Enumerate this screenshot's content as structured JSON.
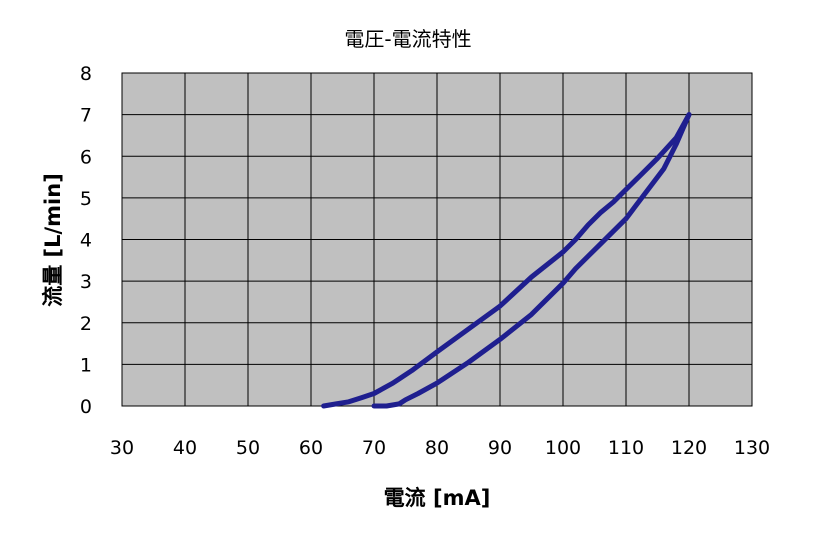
{
  "chart_data": {
    "type": "line",
    "title": "電圧-電流特性",
    "xlabel": "電流 [mA]",
    "ylabel": "流量 [L/min]",
    "xlim": [
      30,
      130
    ],
    "ylim": [
      0,
      8
    ],
    "xticks": [
      30,
      40,
      50,
      60,
      70,
      80,
      90,
      100,
      110,
      120,
      130
    ],
    "yticks": [
      0,
      1,
      2,
      3,
      4,
      5,
      6,
      7,
      8
    ],
    "grid": true,
    "plot_background": "#c0c0c0",
    "series_color": "#1f1f8f",
    "legend": "none",
    "series": [
      {
        "x": [
          62,
          64,
          66,
          68,
          70,
          73,
          76,
          80,
          85,
          90,
          95,
          100,
          102,
          104,
          106,
          108,
          110,
          112,
          115,
          118,
          120
        ],
        "y": [
          0,
          0.05,
          0.1,
          0.2,
          0.3,
          0.55,
          0.85,
          1.3,
          1.85,
          2.4,
          3.1,
          3.7,
          4.0,
          4.35,
          4.65,
          4.9,
          5.2,
          5.5,
          5.95,
          6.45,
          7.0
        ]
      },
      {
        "x": [
          120,
          118,
          116,
          114,
          112,
          110,
          108,
          106,
          104,
          102,
          100,
          95,
          90,
          85,
          80,
          77,
          75,
          74,
          72,
          70
        ],
        "y": [
          7.0,
          6.3,
          5.7,
          5.3,
          4.9,
          4.5,
          4.2,
          3.9,
          3.6,
          3.3,
          2.95,
          2.2,
          1.6,
          1.05,
          0.55,
          0.3,
          0.15,
          0.05,
          0,
          0
        ]
      }
    ]
  }
}
